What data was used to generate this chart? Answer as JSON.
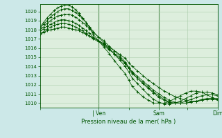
{
  "bg_color": "#cce8e8",
  "plot_bg": "#ddeedd",
  "grid_color": "#aaccaa",
  "line_color": "#005500",
  "marker": "+",
  "xlabel": "Pression niveau de la mer( hPa )",
  "ylim": [
    1009.5,
    1020.8
  ],
  "yticks": [
    1010,
    1011,
    1012,
    1013,
    1014,
    1015,
    1016,
    1017,
    1018,
    1019,
    1020
  ],
  "xtick_labels": [
    "",
    "| Ven",
    "",
    "Sam",
    "",
    "Dim"
  ],
  "xtick_positions": [
    0,
    0.33,
    0.5,
    0.67,
    0.83,
    1.0
  ],
  "vlines": [
    0.33,
    0.67,
    1.0
  ],
  "series": [
    {
      "x": [
        0.0,
        0.02,
        0.04,
        0.06,
        0.08,
        0.1,
        0.12,
        0.14,
        0.16,
        0.18,
        0.2,
        0.22,
        0.24,
        0.26,
        0.28,
        0.3,
        0.33,
        0.36,
        0.39,
        0.42,
        0.45,
        0.48,
        0.5,
        0.52,
        0.55,
        0.58,
        0.61,
        0.64,
        0.67,
        0.7,
        0.73,
        0.76,
        0.79,
        0.82,
        0.85,
        0.88,
        0.91,
        0.94,
        0.97,
        1.0
      ],
      "y": [
        1017.5,
        1017.7,
        1017.9,
        1018.0,
        1018.1,
        1018.2,
        1018.3,
        1018.3,
        1018.2,
        1018.1,
        1018.0,
        1017.9,
        1017.7,
        1017.5,
        1017.3,
        1017.1,
        1016.8,
        1016.5,
        1016.1,
        1015.7,
        1015.3,
        1014.9,
        1014.4,
        1014.0,
        1013.5,
        1013.0,
        1012.5,
        1012.1,
        1011.7,
        1011.3,
        1011.0,
        1010.7,
        1010.5,
        1010.3,
        1010.2,
        1010.2,
        1010.3,
        1010.4,
        1010.5,
        1010.5
      ]
    },
    {
      "x": [
        0.0,
        0.02,
        0.04,
        0.06,
        0.08,
        0.1,
        0.12,
        0.14,
        0.16,
        0.18,
        0.2,
        0.22,
        0.24,
        0.26,
        0.28,
        0.3,
        0.33,
        0.36,
        0.39,
        0.42,
        0.45,
        0.48,
        0.5,
        0.52,
        0.55,
        0.58,
        0.61,
        0.64,
        0.67,
        0.7,
        0.73,
        0.76,
        0.79,
        0.82,
        0.85,
        0.88,
        0.91,
        0.94,
        0.97,
        1.0
      ],
      "y": [
        1017.5,
        1017.8,
        1018.1,
        1018.3,
        1018.5,
        1018.6,
        1018.7,
        1018.7,
        1018.6,
        1018.5,
        1018.3,
        1018.1,
        1017.9,
        1017.6,
        1017.3,
        1017.0,
        1016.7,
        1016.3,
        1015.8,
        1015.4,
        1014.9,
        1014.4,
        1013.9,
        1013.4,
        1012.9,
        1012.4,
        1011.9,
        1011.4,
        1011.0,
        1010.6,
        1010.3,
        1010.1,
        1010.0,
        1010.0,
        1010.1,
        1010.2,
        1010.3,
        1010.4,
        1010.4,
        1010.4
      ]
    },
    {
      "x": [
        0.0,
        0.02,
        0.04,
        0.06,
        0.08,
        0.1,
        0.12,
        0.14,
        0.16,
        0.18,
        0.2,
        0.22,
        0.24,
        0.26,
        0.28,
        0.3,
        0.33,
        0.36,
        0.39,
        0.42,
        0.45,
        0.48,
        0.5,
        0.52,
        0.55,
        0.58,
        0.61,
        0.64,
        0.67,
        0.7,
        0.73,
        0.76,
        0.79,
        0.82,
        0.85,
        0.88,
        0.91,
        0.94,
        0.97,
        1.0
      ],
      "y": [
        1017.8,
        1018.1,
        1018.4,
        1018.6,
        1018.8,
        1019.0,
        1019.1,
        1019.1,
        1019.0,
        1018.9,
        1018.7,
        1018.5,
        1018.2,
        1017.9,
        1017.6,
        1017.2,
        1016.8,
        1016.4,
        1015.9,
        1015.4,
        1014.9,
        1014.3,
        1013.8,
        1013.2,
        1012.7,
        1012.2,
        1011.7,
        1011.2,
        1010.8,
        1010.4,
        1010.1,
        1010.0,
        1010.0,
        1010.0,
        1010.1,
        1010.2,
        1010.4,
        1010.5,
        1010.5,
        1010.4
      ]
    },
    {
      "x": [
        0.0,
        0.02,
        0.04,
        0.06,
        0.08,
        0.1,
        0.12,
        0.14,
        0.16,
        0.18,
        0.2,
        0.22,
        0.24,
        0.26,
        0.28,
        0.3,
        0.33,
        0.36,
        0.39,
        0.42,
        0.45,
        0.48,
        0.5,
        0.52,
        0.55,
        0.58,
        0.61,
        0.64,
        0.67,
        0.7,
        0.73,
        0.76,
        0.79,
        0.82,
        0.85,
        0.88,
        0.91,
        0.94,
        0.97,
        1.0
      ],
      "y": [
        1018.0,
        1018.3,
        1018.7,
        1019.0,
        1019.3,
        1019.5,
        1019.6,
        1019.7,
        1019.7,
        1019.6,
        1019.4,
        1019.1,
        1018.8,
        1018.5,
        1018.1,
        1017.7,
        1017.2,
        1016.8,
        1016.2,
        1015.7,
        1015.1,
        1014.5,
        1013.9,
        1013.3,
        1012.7,
        1012.1,
        1011.6,
        1011.1,
        1010.6,
        1010.3,
        1010.0,
        1010.0,
        1010.0,
        1010.2,
        1010.4,
        1010.6,
        1010.8,
        1010.9,
        1010.9,
        1010.8
      ]
    },
    {
      "x": [
        0.0,
        0.02,
        0.04,
        0.06,
        0.08,
        0.1,
        0.12,
        0.14,
        0.16,
        0.18,
        0.2,
        0.22,
        0.24,
        0.26,
        0.28,
        0.3,
        0.33,
        0.36,
        0.39,
        0.42,
        0.45,
        0.48,
        0.5,
        0.52,
        0.55,
        0.58,
        0.61,
        0.64,
        0.67,
        0.7,
        0.73,
        0.76,
        0.79,
        0.82,
        0.85,
        0.88,
        0.91,
        0.94,
        0.97,
        1.0
      ],
      "y": [
        1018.2,
        1018.6,
        1019.0,
        1019.4,
        1019.7,
        1020.0,
        1020.2,
        1020.3,
        1020.3,
        1020.1,
        1019.9,
        1019.6,
        1019.2,
        1018.8,
        1018.3,
        1017.8,
        1017.2,
        1016.6,
        1016.0,
        1015.3,
        1014.7,
        1014.0,
        1013.4,
        1012.7,
        1012.1,
        1011.5,
        1010.9,
        1010.4,
        1010.1,
        1009.9,
        1009.9,
        1010.0,
        1010.2,
        1010.5,
        1010.8,
        1011.1,
        1011.2,
        1011.2,
        1011.1,
        1010.9
      ]
    },
    {
      "x": [
        0.0,
        0.02,
        0.04,
        0.06,
        0.08,
        0.1,
        0.12,
        0.14,
        0.16,
        0.18,
        0.2,
        0.22,
        0.24,
        0.26,
        0.28,
        0.3,
        0.33,
        0.36,
        0.39,
        0.42,
        0.45,
        0.48,
        0.5,
        0.52,
        0.55,
        0.58,
        0.61,
        0.64,
        0.67,
        0.7,
        0.73,
        0.76,
        0.79,
        0.82,
        0.85,
        0.88,
        0.91,
        0.94,
        0.97,
        1.0
      ],
      "y": [
        1018.3,
        1018.8,
        1019.3,
        1019.7,
        1020.1,
        1020.4,
        1020.6,
        1020.7,
        1020.7,
        1020.5,
        1020.2,
        1019.8,
        1019.3,
        1018.8,
        1018.2,
        1017.5,
        1016.8,
        1016.1,
        1015.4,
        1014.6,
        1013.9,
        1013.2,
        1012.5,
        1011.8,
        1011.2,
        1010.7,
        1010.3,
        1010.0,
        1010.0,
        1010.0,
        1010.2,
        1010.5,
        1010.8,
        1011.1,
        1011.3,
        1011.3,
        1011.2,
        1010.9,
        1010.6,
        1010.3
      ]
    }
  ]
}
